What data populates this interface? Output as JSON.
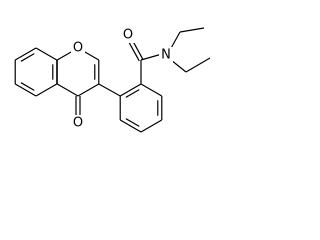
{
  "atoms": {
    "ring_oxygen": "O",
    "ketone_oxygen": "O",
    "amide_oxygen": "O",
    "amide_nitrogen": "N"
  }
}
